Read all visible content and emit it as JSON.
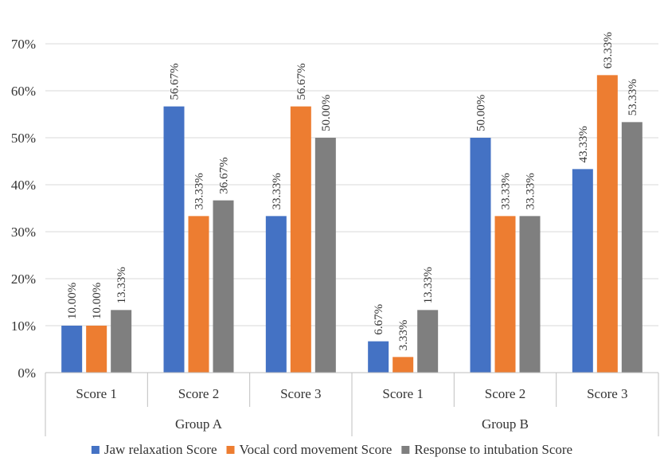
{
  "chart_data": {
    "type": "bar",
    "categories": [
      "Score 1",
      "Score 2",
      "Score 3",
      "Score 1",
      "Score 2",
      "Score 3"
    ],
    "groups": [
      {
        "label": "Group A",
        "categories": [
          "Score 1",
          "Score 2",
          "Score 3"
        ]
      },
      {
        "label": "Group B",
        "categories": [
          "Score 1",
          "Score 2",
          "Score 3"
        ]
      }
    ],
    "series": [
      {
        "name": "Jaw relaxation Score",
        "color": "#4472c4",
        "values": [
          10.0,
          56.67,
          33.33,
          6.67,
          50.0,
          43.33
        ],
        "labels": [
          "10.00%",
          "56.67%",
          "33.33%",
          "6.67%",
          "50.00%",
          "43.33%"
        ]
      },
      {
        "name": "Vocal cord movement Score",
        "color": "#ed7d31",
        "values": [
          10.0,
          33.33,
          56.67,
          3.33,
          33.33,
          63.33
        ],
        "labels": [
          "10.00%",
          "33.33%",
          "56.67%",
          "3.33%",
          "33.33%",
          "63.33%"
        ]
      },
      {
        "name": "Response to intubation Score",
        "color": "#7f7f7f",
        "values": [
          13.33,
          36.67,
          50.0,
          13.33,
          33.33,
          53.33
        ],
        "labels": [
          "13.33%",
          "36.67%",
          "50.00%",
          "13.33%",
          "33.33%",
          "53.33%"
        ]
      }
    ],
    "y_ticks": [
      "0%",
      "10%",
      "20%",
      "30%",
      "40%",
      "50%",
      "60%",
      "70%"
    ],
    "ylim": [
      0,
      70
    ],
    "y_unit": "%",
    "grid": true,
    "legend_position": "bottom",
    "title": "",
    "xlabel": "",
    "ylabel": ""
  }
}
